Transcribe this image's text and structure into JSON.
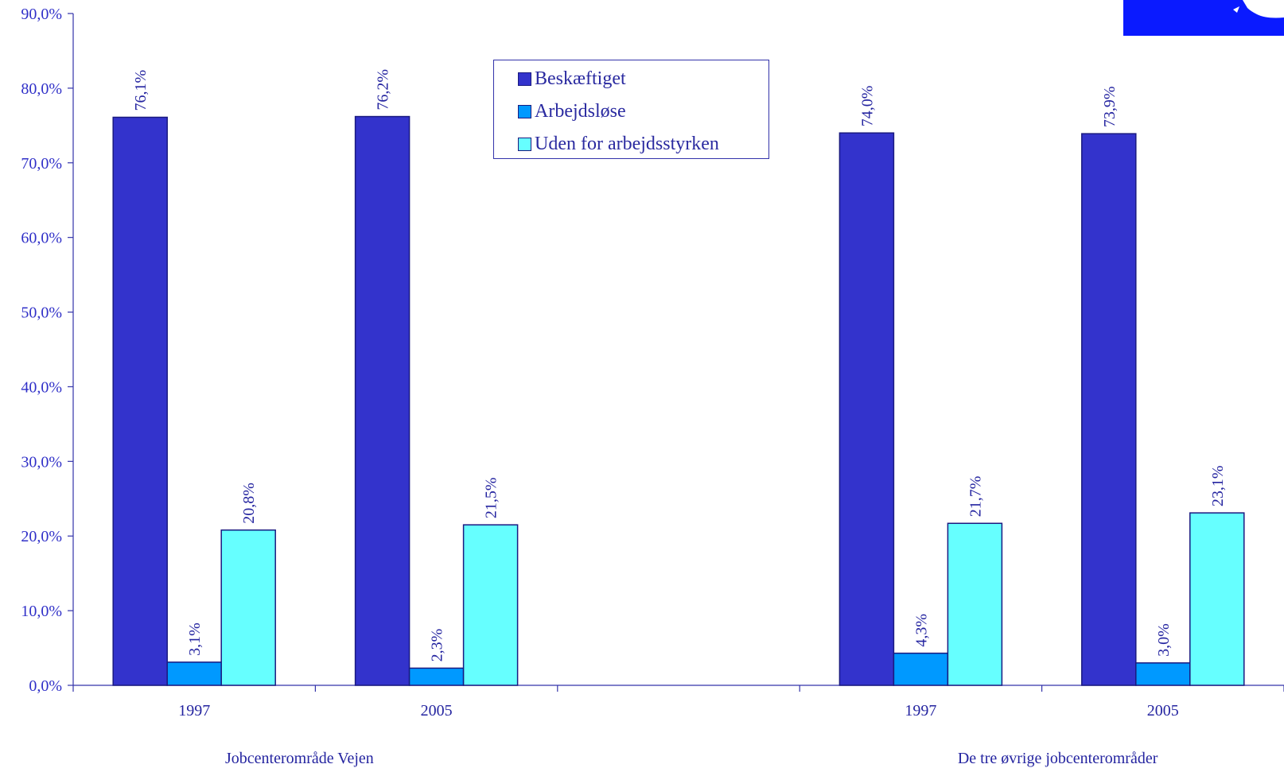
{
  "chart_data": {
    "type": "bar",
    "ylim": [
      0,
      90
    ],
    "yticks": [
      "0,0%",
      "10,0%",
      "20,0%",
      "30,0%",
      "40,0%",
      "50,0%",
      "60,0%",
      "70,0%",
      "80,0%",
      "90,0%"
    ],
    "groups": [
      {
        "label": "Jobcenterområde Vejen",
        "categories": [
          "1997",
          "2005"
        ]
      },
      {
        "label": "De tre øvrige  jobcenterområder",
        "categories": [
          "1997",
          "2005"
        ]
      }
    ],
    "series": [
      {
        "name": "Beskæftiget",
        "color": "#3333cc",
        "values": [
          76.1,
          76.2,
          74.0,
          73.9
        ],
        "labels": [
          "76,1%",
          "76,2%",
          "74,0%",
          "73,9%"
        ]
      },
      {
        "name": "Arbejdsløse",
        "color": "#0099ff",
        "values": [
          3.1,
          2.3,
          4.3,
          3.0
        ],
        "labels": [
          "3,1%",
          "2,3%",
          "4,3%",
          "3,0%"
        ]
      },
      {
        "name": "Uden for arbejdsstyrken",
        "color": "#66ffff",
        "values": [
          20.8,
          21.5,
          21.7,
          23.1
        ],
        "labels": [
          "20,8%",
          "21,5%",
          "21,7%",
          "23,1%"
        ]
      }
    ],
    "legend_position": "top-center",
    "grid": false
  }
}
